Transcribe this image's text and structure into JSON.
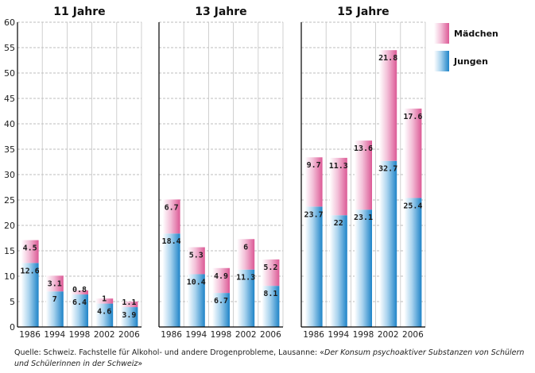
{
  "chart_data": {
    "type": "bar",
    "stacked": true,
    "y_axis": {
      "ylim": [
        0,
        60
      ],
      "ticks": [
        0,
        5,
        10,
        15,
        20,
        25,
        30,
        35,
        40,
        45,
        50,
        55,
        60
      ],
      "grid": true
    },
    "legend": {
      "placement": "top-right",
      "entries": [
        {
          "name": "Mädchen",
          "color": "#e0609a"
        },
        {
          "name": "Jungen",
          "color": "#2b8fd0"
        }
      ]
    },
    "panels": [
      {
        "title": "11 Jahre",
        "categories": [
          "1986",
          "1994",
          "1998",
          "2002",
          "2006"
        ],
        "series": [
          {
            "name": "Jungen",
            "values": [
              12.6,
              7,
              6.4,
              4.6,
              3.9
            ]
          },
          {
            "name": "Mädchen",
            "values": [
              4.5,
              3.1,
              0.8,
              1,
              1.1
            ]
          }
        ]
      },
      {
        "title": "13 Jahre",
        "categories": [
          "1986",
          "1994",
          "1998",
          "2002",
          "2006"
        ],
        "series": [
          {
            "name": "Jungen",
            "values": [
              18.4,
              10.4,
              6.7,
              11.3,
              8.1
            ]
          },
          {
            "name": "Mädchen",
            "values": [
              6.7,
              5.3,
              4.9,
              6,
              5.2
            ]
          }
        ]
      },
      {
        "title": "15 Jahre",
        "categories": [
          "1986",
          "1994",
          "1998",
          "2002",
          "2006"
        ],
        "series": [
          {
            "name": "Jungen",
            "values": [
              23.7,
              22,
              23.1,
              32.7,
              25.4
            ]
          },
          {
            "name": "Mädchen",
            "values": [
              9.7,
              11.3,
              13.6,
              21.8,
              17.6
            ]
          }
        ]
      }
    ]
  },
  "source": {
    "prefix": "Quelle: Schweiz. Fachstelle für Alkohol- und andere Drogenprobleme, Lausanne: «",
    "italic": "Der Konsum psychoaktiver Substanzen von Schülern und Schülerinnen in der Schweiz",
    "suffix": "»"
  }
}
